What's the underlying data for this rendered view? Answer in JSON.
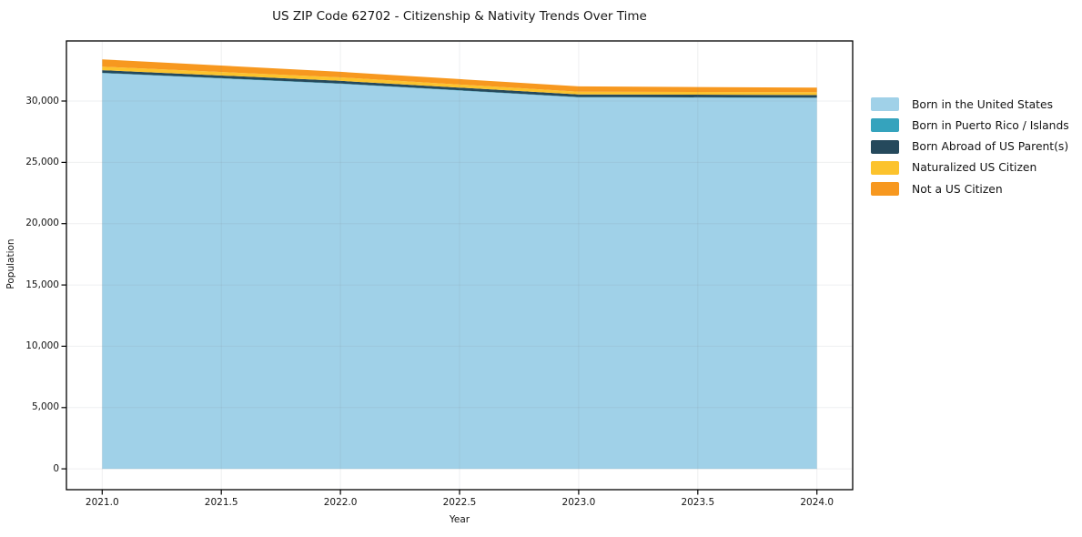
{
  "title": "US ZIP Code 62702 - Citizenship & Nativity Trends Over Time",
  "chart_data": {
    "type": "area",
    "stacked": true,
    "title": "US ZIP Code 62702 - Citizenship & Nativity Trends Over Time",
    "xlabel": "Year",
    "ylabel": "Population",
    "x": [
      2021,
      2022,
      2023,
      2024
    ],
    "x_ticks": [
      2021.0,
      2021.5,
      2022.0,
      2022.5,
      2023.0,
      2023.5,
      2024.0
    ],
    "x_tick_labels": [
      "2021.0",
      "2021.5",
      "2022.0",
      "2022.5",
      "2023.0",
      "2023.5",
      "2024.0"
    ],
    "y_ticks": [
      0,
      5000,
      10000,
      15000,
      20000,
      25000,
      30000
    ],
    "y_tick_labels": [
      "0",
      "5,000",
      "10,000",
      "15,000",
      "20,000",
      "25,000",
      "30,000"
    ],
    "xlim": [
      2020.85,
      2024.15
    ],
    "ylim": [
      -1700,
      34900
    ],
    "grid": true,
    "legend_position": "outside-right",
    "series": [
      {
        "name": "Born in the United States",
        "color": "#a0d1e8",
        "values": [
          32270,
          31400,
          30300,
          30250
        ]
      },
      {
        "name": "Born in Puerto Rico / Islands",
        "color": "#35a3bd",
        "values": [
          30,
          30,
          25,
          25
        ]
      },
      {
        "name": "Born Abroad of US Parent(s)",
        "color": "#25495c",
        "values": [
          220,
          220,
          215,
          215
        ]
      },
      {
        "name": "Naturalized US Citizen",
        "color": "#fcc32d",
        "values": [
          290,
          280,
          225,
          230
        ]
      },
      {
        "name": "Not a US Citizen",
        "color": "#f7981f",
        "values": [
          590,
          450,
          430,
          375
        ]
      }
    ]
  }
}
